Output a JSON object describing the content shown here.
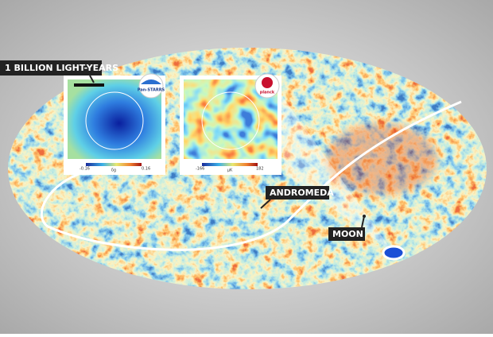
{
  "labels": {
    "scale": "1 BILLION LIGHT-YEARS",
    "andromeda": "ANDROMEDA",
    "moon": "MOON"
  },
  "insets": [
    {
      "logo": "Pan-STARRS",
      "colorbar_min": "-0.16",
      "colorbar_max": "0.16",
      "colorbar_label": "δg"
    },
    {
      "logo": "planck",
      "colorbar_min": "-166",
      "colorbar_max": "182",
      "colorbar_label": "μK"
    }
  ]
}
